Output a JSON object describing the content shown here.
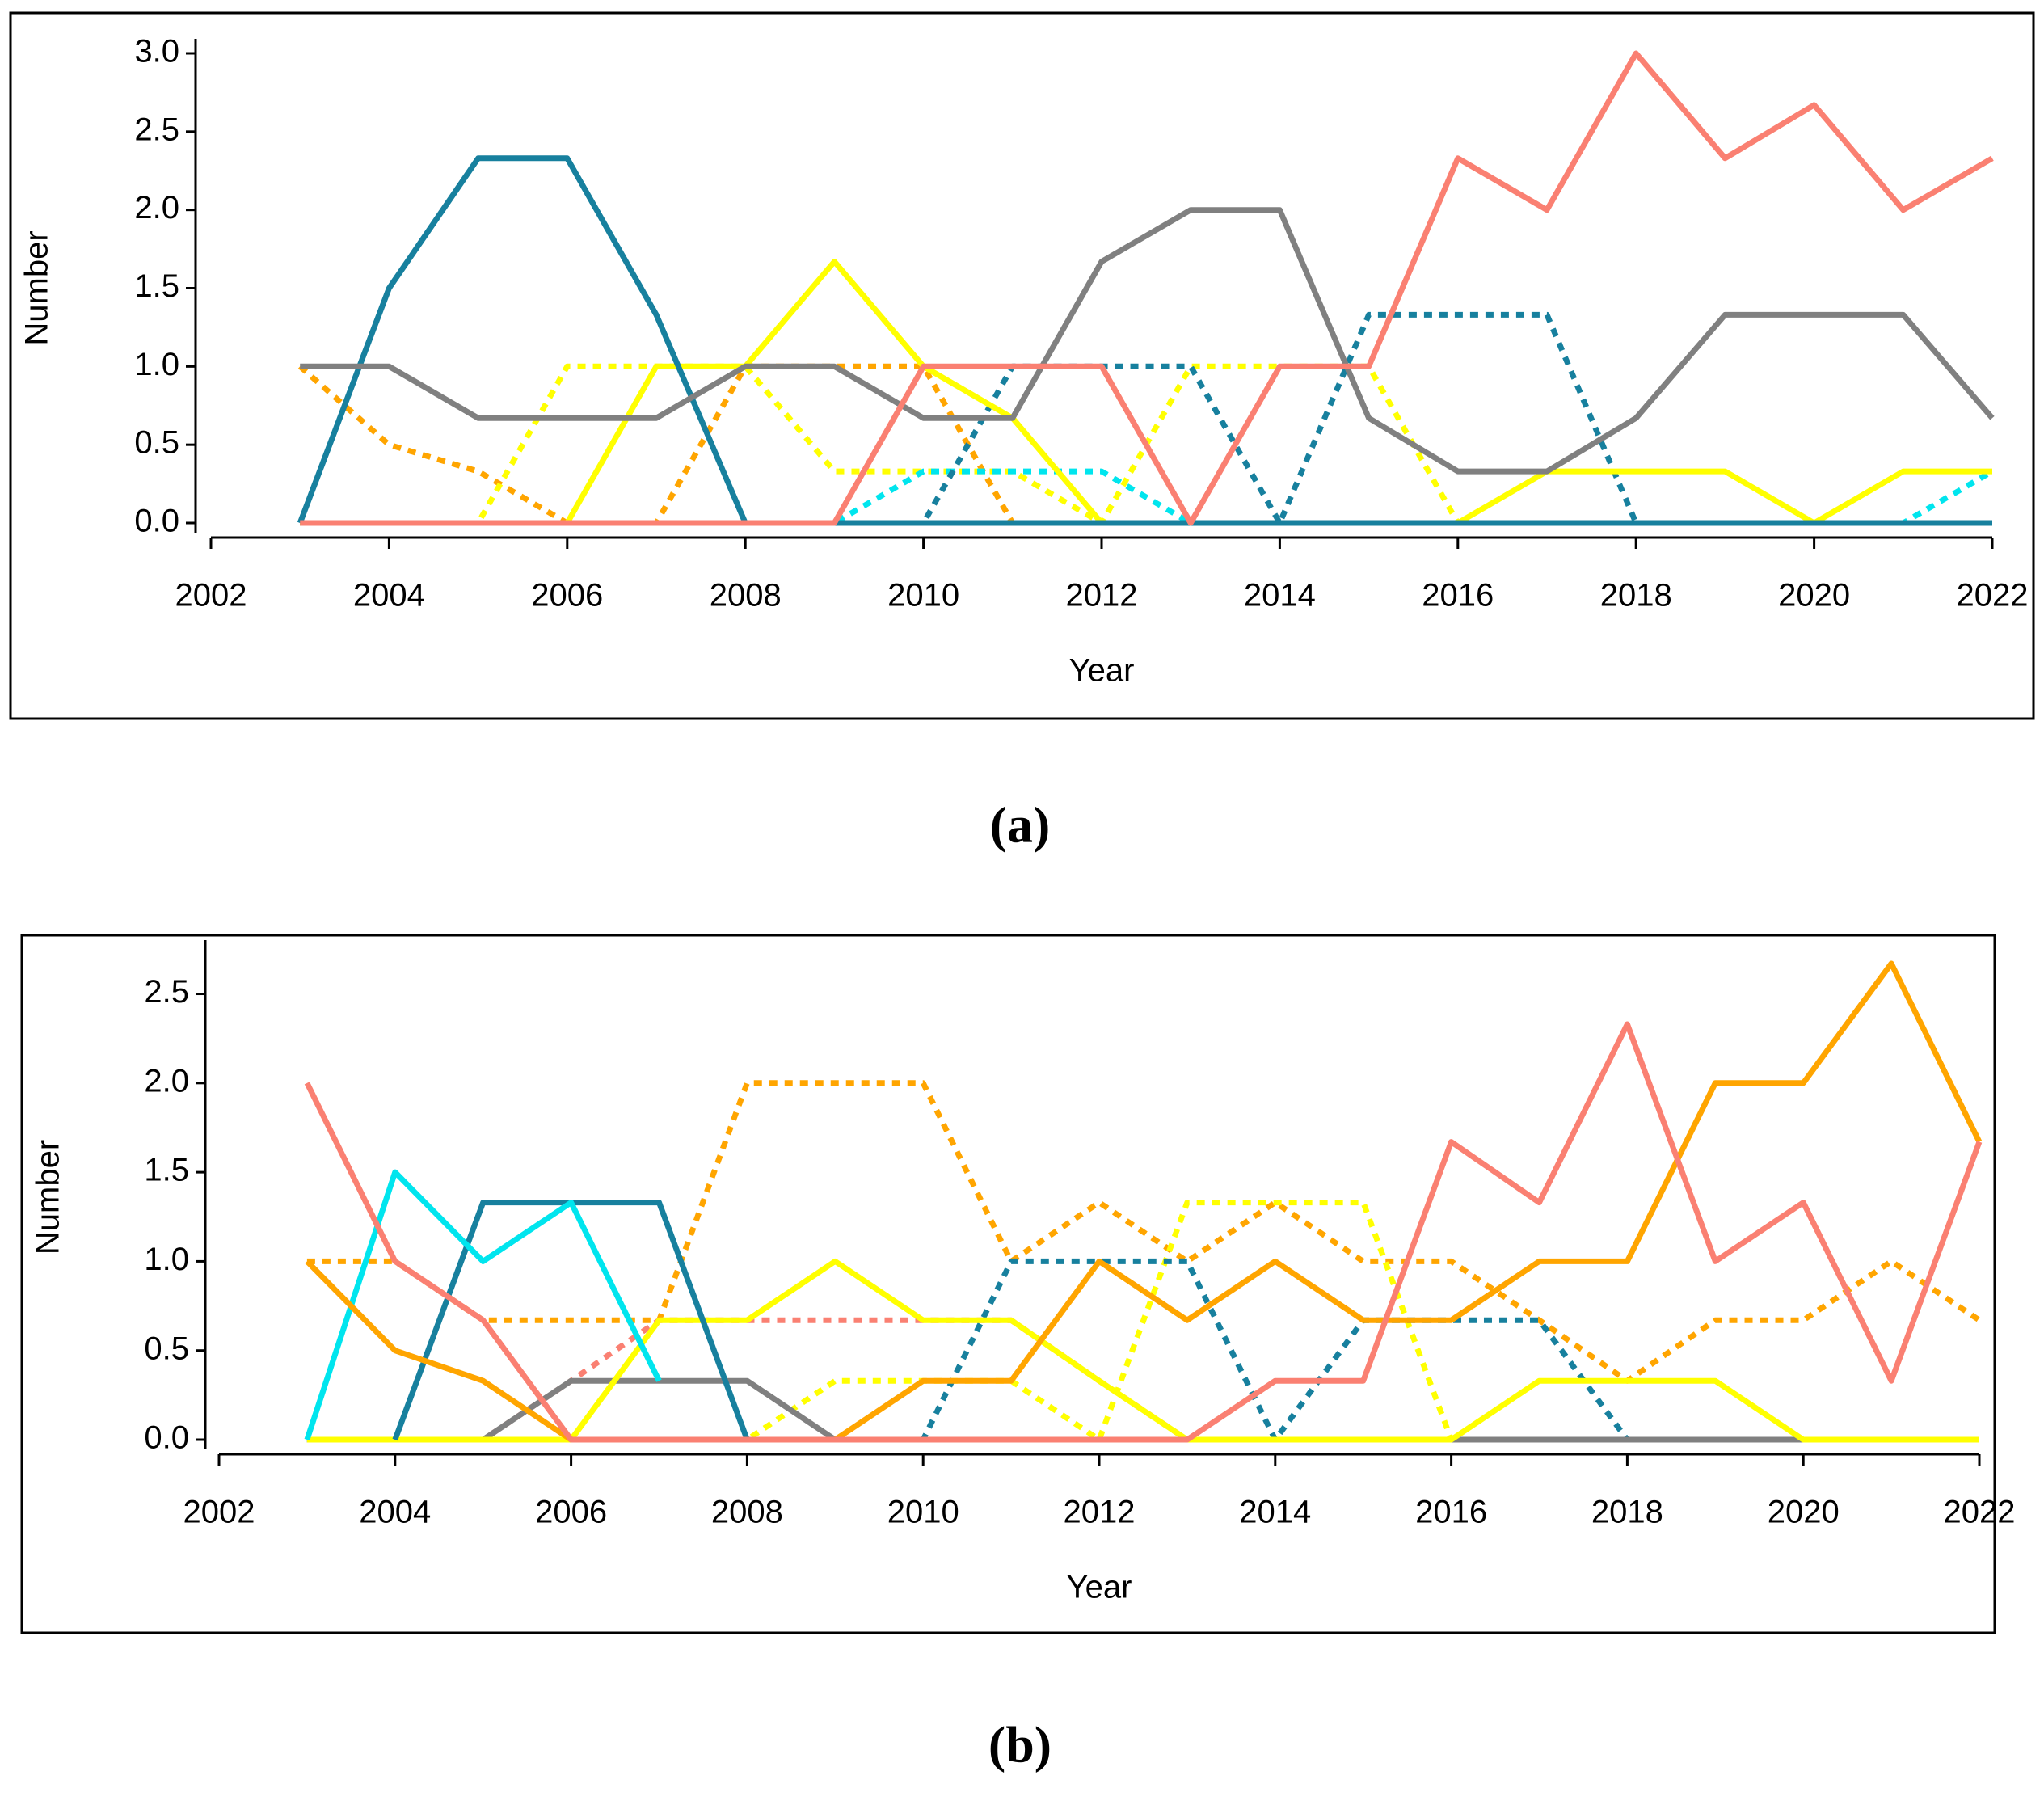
{
  "chart_data": [
    {
      "type": "line",
      "caption": "(a)",
      "x_label": "Year",
      "y_label": "Number",
      "x": [
        2003,
        2004,
        2005,
        2006,
        2007,
        2008,
        2009,
        2010,
        2011,
        2012,
        2013,
        2014,
        2015,
        2016,
        2017,
        2018,
        2019,
        2020,
        2021,
        2022
      ],
      "xlim": [
        2002,
        2022
      ],
      "xticks": [
        2002,
        2004,
        2006,
        2008,
        2010,
        2012,
        2014,
        2016,
        2018,
        2020,
        2022
      ],
      "ylim": [
        0,
        3
      ],
      "yticks": [
        {
          "value": 0,
          "label": "0.0"
        },
        {
          "value": 0.5,
          "label": "0.5"
        },
        {
          "value": 1,
          "label": "1.0"
        },
        {
          "value": 1.5,
          "label": "1.5"
        },
        {
          "value": 2,
          "label": "2.0"
        },
        {
          "value": 2.5,
          "label": "2.5"
        },
        {
          "value": 3,
          "label": "3.0"
        }
      ],
      "series": [
        {
          "color": "#ffa500",
          "dash": true,
          "values": [
            1,
            0.5,
            0.33,
            0,
            0,
            1,
            1,
            1,
            0,
            0,
            0,
            0,
            0,
            0,
            0,
            0,
            0,
            0,
            0,
            0
          ]
        },
        {
          "color": "#ffff00",
          "dash": true,
          "values": [
            0,
            0,
            0,
            1,
            1,
            1,
            0.33,
            0.33,
            0.33,
            0,
            1,
            1,
            1,
            0,
            0,
            0,
            0,
            0,
            0,
            0
          ]
        },
        {
          "color": "#00e5ee",
          "dash": true,
          "values": [
            0,
            0,
            0,
            0,
            0,
            0,
            0,
            0.33,
            0.33,
            0.33,
            0,
            0,
            0,
            0,
            0,
            0,
            0,
            0,
            0,
            0.33
          ]
        },
        {
          "color": "#17809e",
          "dash": true,
          "values": [
            0,
            0,
            0,
            0,
            0,
            0,
            0,
            0,
            1,
            1,
            1,
            0,
            1.33,
            1.33,
            1.33,
            0,
            0,
            0,
            0,
            0
          ]
        },
        {
          "color": "#ffff00",
          "dash": false,
          "values": [
            0,
            0,
            0,
            0,
            1,
            1,
            1.67,
            1,
            0.67,
            0,
            0,
            0,
            0,
            0,
            0.33,
            0.33,
            0.33,
            0,
            0.33,
            0.33
          ]
        },
        {
          "color": "#17809e",
          "dash": false,
          "values": [
            0,
            1.5,
            2.33,
            2.33,
            1.33,
            0,
            0,
            0,
            0,
            0,
            0,
            0,
            0,
            0,
            0,
            0,
            0,
            0,
            0,
            0
          ]
        },
        {
          "color": "#808080",
          "dash": false,
          "values": [
            1,
            1,
            0.67,
            0.67,
            0.67,
            1,
            1,
            0.67,
            0.67,
            1.67,
            2,
            2,
            0.67,
            0.33,
            0.33,
            0.67,
            1.33,
            1.33,
            1.33,
            0.67
          ]
        },
        {
          "color": "#fa8072",
          "dash": false,
          "values": [
            0,
            0,
            0,
            0,
            0,
            0,
            0,
            1,
            1,
            1,
            0,
            1,
            1,
            2.33,
            2,
            3,
            2.33,
            2.67,
            2,
            2.33
          ]
        }
      ]
    },
    {
      "type": "line",
      "caption": "(b)",
      "x_label": "Year",
      "y_label": "Number",
      "x": [
        2003,
        2004,
        2005,
        2006,
        2007,
        2008,
        2009,
        2010,
        2011,
        2012,
        2013,
        2014,
        2015,
        2016,
        2017,
        2018,
        2019,
        2020,
        2021,
        2022
      ],
      "xlim": [
        2002,
        2022
      ],
      "xticks": [
        2002,
        2004,
        2006,
        2008,
        2010,
        2012,
        2014,
        2016,
        2018,
        2020,
        2022
      ],
      "ylim": [
        0,
        2.72
      ],
      "yticks": [
        {
          "value": 0,
          "label": "0.0"
        },
        {
          "value": 0.5,
          "label": "0.5"
        },
        {
          "value": 1,
          "label": "1.0"
        },
        {
          "value": 1.5,
          "label": "1.5"
        },
        {
          "value": 2,
          "label": "2.0"
        },
        {
          "value": 2.5,
          "label": "2.5"
        }
      ],
      "series": [
        {
          "color": "#ffa500",
          "dash": true,
          "values": [
            1,
            1,
            0.67,
            0.67,
            0.67,
            2,
            2,
            2,
            1,
            1.33,
            1,
            1.33,
            1,
            1,
            0.67,
            0.33,
            0.67,
            0.67,
            1,
            0.67
          ]
        },
        {
          "color": "#fa8072",
          "dash": true,
          "values": [
            0,
            0,
            0,
            0.33,
            0.67,
            0.67,
            0.67,
            0.67,
            0.67,
            0.33,
            0,
            0,
            0,
            0,
            0,
            0,
            0,
            0,
            0,
            0
          ]
        },
        {
          "color": "#ffff00",
          "dash": true,
          "values": [
            0,
            0,
            0,
            0,
            0,
            0,
            0.33,
            0.33,
            0.33,
            0,
            1.33,
            1.33,
            1.33,
            0,
            0,
            0,
            0,
            0,
            0,
            0
          ]
        },
        {
          "color": "#17809e",
          "dash": true,
          "values": [
            0,
            0,
            0,
            0,
            0,
            0,
            0,
            0,
            1,
            1,
            1,
            0,
            0.67,
            0.67,
            0.67,
            0,
            0,
            0,
            0,
            0
          ]
        },
        {
          "color": "#808080",
          "dash": false,
          "values": [
            0,
            0,
            0,
            0.33,
            0.33,
            0.33,
            0,
            0,
            0,
            0,
            0,
            0,
            0,
            0,
            0,
            0,
            0,
            0,
            0,
            0
          ]
        },
        {
          "color": "#ffff00",
          "dash": false,
          "values": [
            0,
            0,
            0,
            0,
            0.67,
            0.67,
            1,
            0.67,
            0.67,
            0.33,
            0,
            0,
            0,
            0,
            0.33,
            0.33,
            0.33,
            0,
            0,
            0
          ]
        },
        {
          "color": "#17809e",
          "dash": false,
          "values": [
            null,
            0,
            1.33,
            1.33,
            1.33,
            0,
            0,
            null,
            null,
            null,
            null,
            null,
            null,
            null,
            null,
            null,
            null,
            null,
            null,
            null
          ]
        },
        {
          "color": "#00e5ee",
          "dash": false,
          "values": [
            0,
            1.5,
            1,
            1.33,
            0.33,
            null,
            null,
            null,
            null,
            null,
            null,
            null,
            null,
            null,
            null,
            null,
            null,
            null,
            null,
            null
          ]
        },
        {
          "color": "#ffa500",
          "dash": false,
          "values": [
            1,
            0.5,
            0.33,
            0,
            0,
            0,
            0,
            0.33,
            0.33,
            1,
            0.67,
            1,
            0.67,
            0.67,
            1,
            1,
            2,
            2,
            2.67,
            1.67
          ]
        },
        {
          "color": "#fa8072",
          "dash": false,
          "values": [
            2,
            1,
            0.67,
            0,
            0,
            0,
            0,
            0,
            0,
            0,
            0,
            0.33,
            0.33,
            1.67,
            1.33,
            2.33,
            1,
            1.33,
            0.33,
            1.67
          ]
        }
      ]
    }
  ]
}
